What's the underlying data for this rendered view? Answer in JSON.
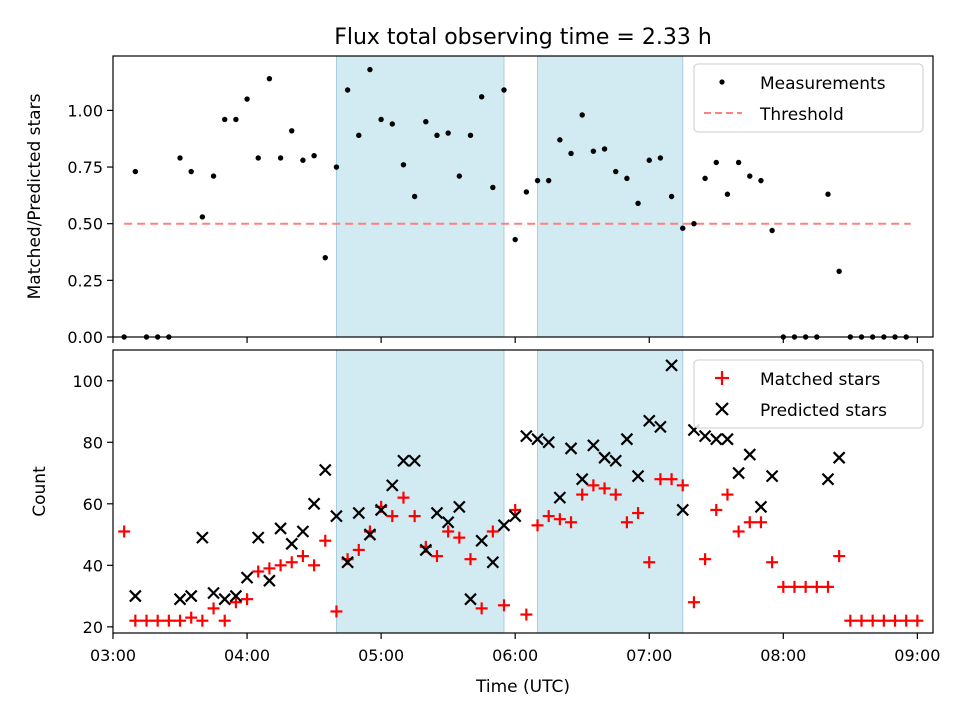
{
  "chart_data": [
    {
      "type": "scatter",
      "title": "Flux total observing time = 2.33 h",
      "ylabel": "Matched/Predicted stars",
      "xlabel": "",
      "xlim": [
        "03:00",
        "09:07"
      ],
      "ylim": [
        0,
        1.24
      ],
      "yticks": [
        0.0,
        0.25,
        0.5,
        0.75,
        1.0
      ],
      "ytick_labels": [
        "0.00",
        "0.25",
        "0.50",
        "0.75",
        "1.00"
      ],
      "grid": false,
      "legend_placement": "top-right",
      "shaded_intervals": [
        [
          "04:40",
          "05:55"
        ],
        [
          "06:10",
          "07:15"
        ]
      ],
      "threshold": {
        "name": "Threshold",
        "y": 0.5,
        "x_range": [
          "03:05",
          "08:57"
        ],
        "color": "#ff8080",
        "style": "dashed"
      },
      "series": [
        {
          "name": "Measurements",
          "marker": "dot",
          "color": "#000000",
          "points": [
            [
              "03:05",
              0.0
            ],
            [
              "03:10",
              0.73
            ],
            [
              "03:15",
              0.0
            ],
            [
              "03:20",
              0.0
            ],
            [
              "03:25",
              0.0
            ],
            [
              "03:30",
              0.79
            ],
            [
              "03:35",
              0.73
            ],
            [
              "03:40",
              0.53
            ],
            [
              "03:45",
              0.71
            ],
            [
              "03:50",
              0.96
            ],
            [
              "03:55",
              0.96
            ],
            [
              "04:00",
              1.05
            ],
            [
              "04:05",
              0.79
            ],
            [
              "04:10",
              1.14
            ],
            [
              "04:15",
              0.79
            ],
            [
              "04:20",
              0.91
            ],
            [
              "04:25",
              0.78
            ],
            [
              "04:30",
              0.8
            ],
            [
              "04:35",
              0.35
            ],
            [
              "04:40",
              0.75
            ],
            [
              "04:45",
              1.09
            ],
            [
              "04:50",
              0.89
            ],
            [
              "04:55",
              1.18
            ],
            [
              "05:00",
              0.96
            ],
            [
              "05:05",
              0.94
            ],
            [
              "05:10",
              0.76
            ],
            [
              "05:15",
              0.62
            ],
            [
              "05:20",
              0.95
            ],
            [
              "05:25",
              0.89
            ],
            [
              "05:30",
              0.9
            ],
            [
              "05:35",
              0.71
            ],
            [
              "05:40",
              0.89
            ],
            [
              "05:45",
              1.06
            ],
            [
              "05:50",
              0.66
            ],
            [
              "05:55",
              1.09
            ],
            [
              "06:00",
              0.43
            ],
            [
              "06:05",
              0.64
            ],
            [
              "06:10",
              0.69
            ],
            [
              "06:15",
              0.69
            ],
            [
              "06:20",
              0.87
            ],
            [
              "06:25",
              0.81
            ],
            [
              "06:30",
              0.98
            ],
            [
              "06:35",
              0.82
            ],
            [
              "06:40",
              0.83
            ],
            [
              "06:45",
              0.73
            ],
            [
              "06:50",
              0.7
            ],
            [
              "06:55",
              0.59
            ],
            [
              "07:00",
              0.78
            ],
            [
              "07:05",
              0.79
            ],
            [
              "07:10",
              0.62
            ],
            [
              "07:15",
              0.48
            ],
            [
              "07:20",
              0.5
            ],
            [
              "07:25",
              0.7
            ],
            [
              "07:30",
              0.77
            ],
            [
              "07:35",
              0.63
            ],
            [
              "07:40",
              0.77
            ],
            [
              "07:45",
              0.71
            ],
            [
              "07:50",
              0.69
            ],
            [
              "07:55",
              0.47
            ],
            [
              "08:00",
              0.0
            ],
            [
              "08:05",
              0.0
            ],
            [
              "08:10",
              0.0
            ],
            [
              "08:15",
              0.0
            ],
            [
              "08:20",
              0.63
            ],
            [
              "08:25",
              0.29
            ],
            [
              "08:30",
              0.0
            ],
            [
              "08:35",
              0.0
            ],
            [
              "08:40",
              0.0
            ],
            [
              "08:45",
              0.0
            ],
            [
              "08:50",
              0.0
            ],
            [
              "08:55",
              0.0
            ]
          ]
        }
      ]
    },
    {
      "type": "scatter",
      "title": "",
      "xlabel": "Time (UTC)",
      "ylabel": "Count",
      "xlim": [
        "03:00",
        "09:07"
      ],
      "xticks": [
        "03:00",
        "04:00",
        "05:00",
        "06:00",
        "07:00",
        "08:00",
        "09:00"
      ],
      "ylim": [
        18,
        110
      ],
      "yticks": [
        20,
        40,
        60,
        80,
        100
      ],
      "grid": false,
      "legend_placement": "top-right",
      "shaded_intervals": [
        [
          "04:40",
          "05:55"
        ],
        [
          "06:10",
          "07:15"
        ]
      ],
      "series": [
        {
          "name": "Matched stars",
          "marker": "plus",
          "color": "#ff0000",
          "points": [
            [
              "03:05",
              51
            ],
            [
              "03:10",
              22
            ],
            [
              "03:15",
              22
            ],
            [
              "03:20",
              22
            ],
            [
              "03:25",
              22
            ],
            [
              "03:30",
              22
            ],
            [
              "03:35",
              23
            ],
            [
              "03:40",
              22
            ],
            [
              "03:45",
              26
            ],
            [
              "03:50",
              22
            ],
            [
              "03:55",
              28
            ],
            [
              "04:00",
              29
            ],
            [
              "04:05",
              38
            ],
            [
              "04:10",
              39
            ],
            [
              "04:15",
              40
            ],
            [
              "04:20",
              41
            ],
            [
              "04:25",
              43
            ],
            [
              "04:30",
              40
            ],
            [
              "04:35",
              48
            ],
            [
              "04:40",
              25
            ],
            [
              "04:45",
              42
            ],
            [
              "04:50",
              45
            ],
            [
              "04:55",
              51
            ],
            [
              "05:00",
              59
            ],
            [
              "05:05",
              56
            ],
            [
              "05:10",
              62
            ],
            [
              "05:15",
              56
            ],
            [
              "05:20",
              46
            ],
            [
              "05:25",
              43
            ],
            [
              "05:30",
              51
            ],
            [
              "05:35",
              49
            ],
            [
              "05:40",
              42
            ],
            [
              "05:45",
              26
            ],
            [
              "05:50",
              51
            ],
            [
              "05:55",
              27
            ],
            [
              "06:00",
              58
            ],
            [
              "06:05",
              24
            ],
            [
              "06:10",
              53
            ],
            [
              "06:15",
              56
            ],
            [
              "06:20",
              55
            ],
            [
              "06:25",
              54
            ],
            [
              "06:30",
              63
            ],
            [
              "06:35",
              66
            ],
            [
              "06:40",
              65
            ],
            [
              "06:45",
              63
            ],
            [
              "06:50",
              54
            ],
            [
              "06:55",
              57
            ],
            [
              "07:00",
              41
            ],
            [
              "07:05",
              68
            ],
            [
              "07:10",
              68
            ],
            [
              "07:15",
              66
            ],
            [
              "07:20",
              28
            ],
            [
              "07:25",
              42
            ],
            [
              "07:30",
              58
            ],
            [
              "07:35",
              63
            ],
            [
              "07:40",
              51
            ],
            [
              "07:45",
              54
            ],
            [
              "07:50",
              54
            ],
            [
              "07:55",
              41
            ],
            [
              "08:00",
              33
            ],
            [
              "08:05",
              33
            ],
            [
              "08:10",
              33
            ],
            [
              "08:15",
              33
            ],
            [
              "08:20",
              33
            ],
            [
              "08:25",
              43
            ],
            [
              "08:30",
              22
            ],
            [
              "08:35",
              22
            ],
            [
              "08:40",
              22
            ],
            [
              "08:45",
              22
            ],
            [
              "08:50",
              22
            ],
            [
              "08:55",
              22
            ],
            [
              "09:00",
              22
            ]
          ]
        },
        {
          "name": "Predicted stars",
          "marker": "x",
          "color": "#000000",
          "points": [
            [
              "03:10",
              30
            ],
            [
              "03:30",
              29
            ],
            [
              "03:35",
              30
            ],
            [
              "03:40",
              49
            ],
            [
              "03:45",
              31
            ],
            [
              "03:50",
              29
            ],
            [
              "03:55",
              30
            ],
            [
              "04:00",
              36
            ],
            [
              "04:05",
              49
            ],
            [
              "04:10",
              35
            ],
            [
              "04:15",
              52
            ],
            [
              "04:20",
              47
            ],
            [
              "04:25",
              51
            ],
            [
              "04:30",
              60
            ],
            [
              "04:35",
              71
            ],
            [
              "04:40",
              56
            ],
            [
              "04:45",
              41
            ],
            [
              "04:50",
              57
            ],
            [
              "04:55",
              50
            ],
            [
              "05:00",
              58
            ],
            [
              "05:05",
              66
            ],
            [
              "05:10",
              74
            ],
            [
              "05:15",
              74
            ],
            [
              "05:20",
              45
            ],
            [
              "05:25",
              57
            ],
            [
              "05:30",
              54
            ],
            [
              "05:35",
              59
            ],
            [
              "05:40",
              29
            ],
            [
              "05:45",
              48
            ],
            [
              "05:50",
              41
            ],
            [
              "05:55",
              53
            ],
            [
              "06:00",
              56
            ],
            [
              "06:05",
              82
            ],
            [
              "06:10",
              81
            ],
            [
              "06:15",
              80
            ],
            [
              "06:20",
              62
            ],
            [
              "06:25",
              78
            ],
            [
              "06:30",
              68
            ],
            [
              "06:35",
              79
            ],
            [
              "06:40",
              75
            ],
            [
              "06:45",
              74
            ],
            [
              "06:50",
              81
            ],
            [
              "06:55",
              69
            ],
            [
              "07:00",
              87
            ],
            [
              "07:05",
              85
            ],
            [
              "07:10",
              105
            ],
            [
              "07:15",
              58
            ],
            [
              "07:20",
              84
            ],
            [
              "07:25",
              82
            ],
            [
              "07:30",
              81
            ],
            [
              "07:35",
              81
            ],
            [
              "07:40",
              70
            ],
            [
              "07:45",
              76
            ],
            [
              "07:50",
              59
            ],
            [
              "07:55",
              69
            ],
            [
              "08:20",
              68
            ],
            [
              "08:25",
              75
            ]
          ]
        }
      ]
    }
  ],
  "colors": {
    "shade": "#add8e6",
    "threshold": "#ff8080",
    "matched": "#ff0000",
    "predicted": "#000000",
    "measurements": "#000000"
  }
}
